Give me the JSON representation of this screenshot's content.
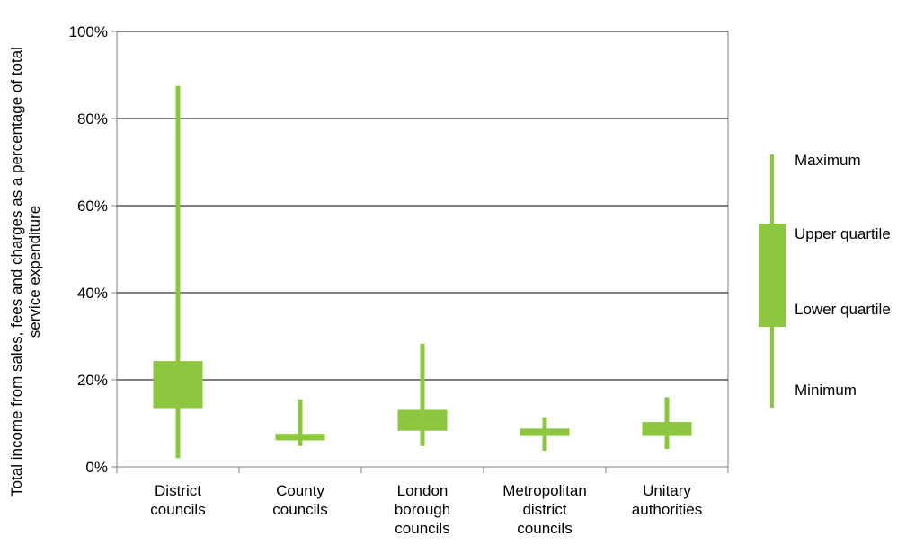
{
  "chart_data": {
    "type": "box",
    "ylabel_lines": [
      "Total income from sales, fees and charges as a percentage of total",
      "service expenditure"
    ],
    "ylim": [
      0,
      100
    ],
    "y_ticks": [
      0,
      20,
      40,
      60,
      80,
      100
    ],
    "y_tick_labels": [
      "0%",
      "20%",
      "40%",
      "60%",
      "80%",
      "100%"
    ],
    "grid": true,
    "color": "#8dc63f",
    "categories": [
      {
        "lines": [
          "District",
          "councils"
        ],
        "min": 2,
        "q1": 13.5,
        "q3": 24.3,
        "max": 87.5
      },
      {
        "lines": [
          "County",
          "councils"
        ],
        "min": 4.8,
        "q1": 6.1,
        "q3": 7.6,
        "max": 15.5
      },
      {
        "lines": [
          "London",
          "borough",
          "councils"
        ],
        "min": 4.8,
        "q1": 8.3,
        "q3": 13.1,
        "max": 28.3
      },
      {
        "lines": [
          "Metropolitan",
          "district",
          "councils"
        ],
        "min": 3.7,
        "q1": 7.1,
        "q3": 8.8,
        "max": 11.4
      },
      {
        "lines": [
          "Unitary",
          "authorities"
        ],
        "min": 4.1,
        "q1": 7.1,
        "q3": 10.3,
        "max": 16
      }
    ],
    "legend": {
      "position": "right",
      "labels": {
        "max": "Maximum",
        "q3": "Upper quartile",
        "q1": "Lower quartile",
        "min": "Minimum"
      }
    }
  }
}
